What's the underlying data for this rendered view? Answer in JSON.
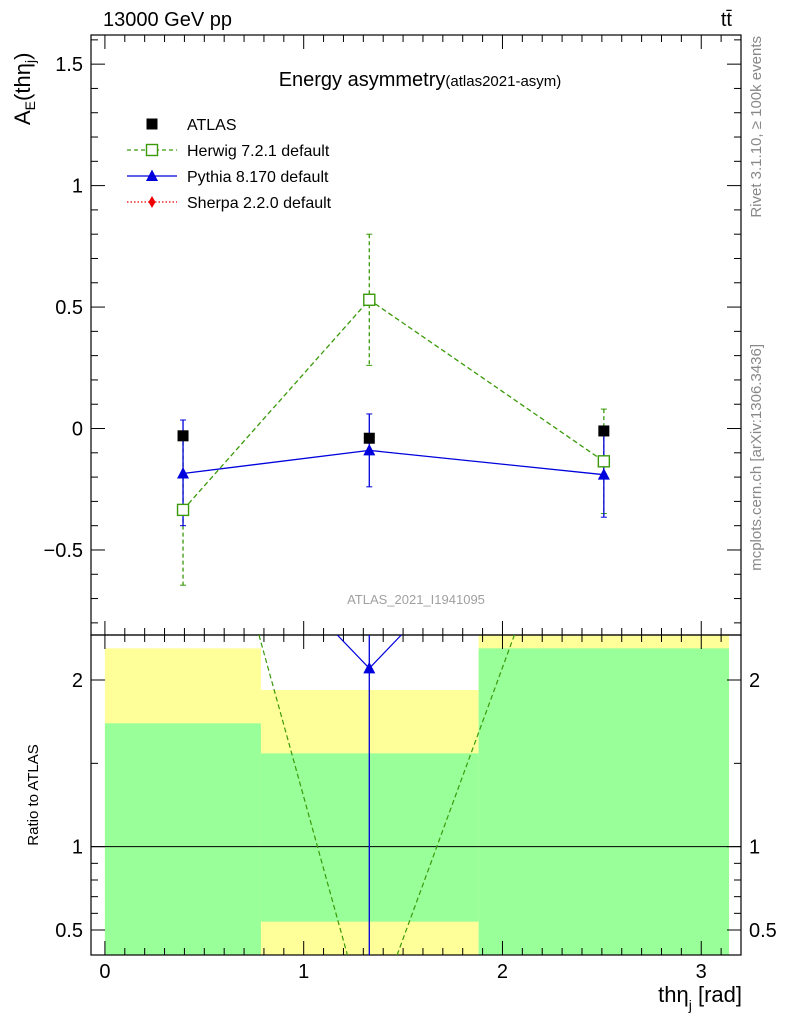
{
  "header": {
    "left": "13000 GeV pp",
    "right": "tt̄"
  },
  "side_text": {
    "rivet": "Rivet 3.1.10, ≥ 100k events",
    "mcplots": "mcplots.cern.ch [arXiv:1306.3436]"
  },
  "chart_data": [
    {
      "type": "scatter",
      "title": "Energy asymmetry",
      "title_suffix": "(atlas2021-asym)",
      "watermark": "ATLAS_2021_I1941095",
      "ylabel": "A_E(thη_j)",
      "ylabel_main": "A",
      "ylabel_sub": "E",
      "ylabel_paren": "(thη",
      "ylabel_sub2": "j",
      "ylabel_close": ")",
      "ylim": [
        -0.85,
        1.62
      ],
      "yticks": [
        -0.5,
        0,
        0.5,
        1,
        1.5
      ],
      "ytick_labels": [
        "−0.5",
        "0",
        "0.5",
        "1",
        "1.5"
      ],
      "xlim": [
        -0.07,
        3.2
      ],
      "legend_position": "top-left",
      "series": [
        {
          "name": "ATLAS",
          "color": "#000000",
          "marker": "filled-square",
          "x": [
            0.393,
            1.33,
            2.51
          ],
          "xerr": [
            0.393,
            0.55,
            0.63
          ],
          "y": [
            -0.03,
            -0.04,
            -0.01
          ],
          "yerr": [
            null,
            null,
            null
          ]
        },
        {
          "name": "Herwig 7.2.1 default",
          "color": "#3a9a0a",
          "marker": "open-square",
          "line": "dashed",
          "x": [
            0.393,
            1.33,
            2.51
          ],
          "y": [
            -0.335,
            0.53,
            -0.135
          ],
          "yerr_low": [
            0.31,
            0.27,
            0.215
          ],
          "yerr_high": [
            0.31,
            0.27,
            0.215
          ]
        },
        {
          "name": "Pythia 8.170 default",
          "color": "#0000dd",
          "marker": "filled-triangle",
          "line": "solid",
          "x": [
            0.393,
            1.33,
            2.51
          ],
          "y": [
            -0.185,
            -0.09,
            -0.19
          ],
          "yerr_low": [
            0.215,
            0.15,
            0.175
          ],
          "yerr_high": [
            0.22,
            0.15,
            0.175
          ]
        },
        {
          "name": "Sherpa 2.2.0 default",
          "color": "#ee0000",
          "marker": "filled-diamond",
          "line": "dotted",
          "x": [],
          "y": []
        }
      ]
    },
    {
      "type": "line",
      "ylabel": "Ratio to ATLAS",
      "xlabel": "thη_j [rad]",
      "xlabel_main": "thη",
      "xlabel_sub": "j",
      "xlabel_unit": " [rad]",
      "xlim": [
        -0.07,
        3.2
      ],
      "ylim": [
        0.35,
        2.27
      ],
      "xticks": [
        0,
        1,
        2,
        3
      ],
      "xtick_labels": [
        "0",
        "1",
        "2",
        "3"
      ],
      "yticks": [
        0.5,
        1,
        2
      ],
      "ytick_labels": [
        "0.5",
        "1",
        "2"
      ],
      "bins": [
        {
          "lo": 0.0,
          "hi": 0.785,
          "green": [
            0.35,
            1.74
          ],
          "yellow": [
            0.35,
            2.19
          ]
        },
        {
          "lo": 0.785,
          "hi": 1.88,
          "green": [
            0.55,
            1.56
          ],
          "yellow": [
            0.35,
            1.94
          ]
        },
        {
          "lo": 1.88,
          "hi": 3.14,
          "green": [
            0.35,
            2.19
          ],
          "yellow": [
            0.35,
            2.27
          ]
        }
      ],
      "band_colors": {
        "green": "#99ff99",
        "yellow": "#ffff99"
      },
      "reference_line": 1,
      "pythia_ratio": {
        "x": 1.33,
        "y": 2.07,
        "color": "#0000dd"
      },
      "herwig_ratio": {
        "color": "#3a9a0a",
        "segments": [
          [
            [
              0.775,
              2.27
            ],
            [
              1.22,
              0.35
            ]
          ],
          [
            [
              1.47,
              0.35
            ],
            [
              2.06,
              2.27
            ]
          ]
        ]
      }
    }
  ]
}
